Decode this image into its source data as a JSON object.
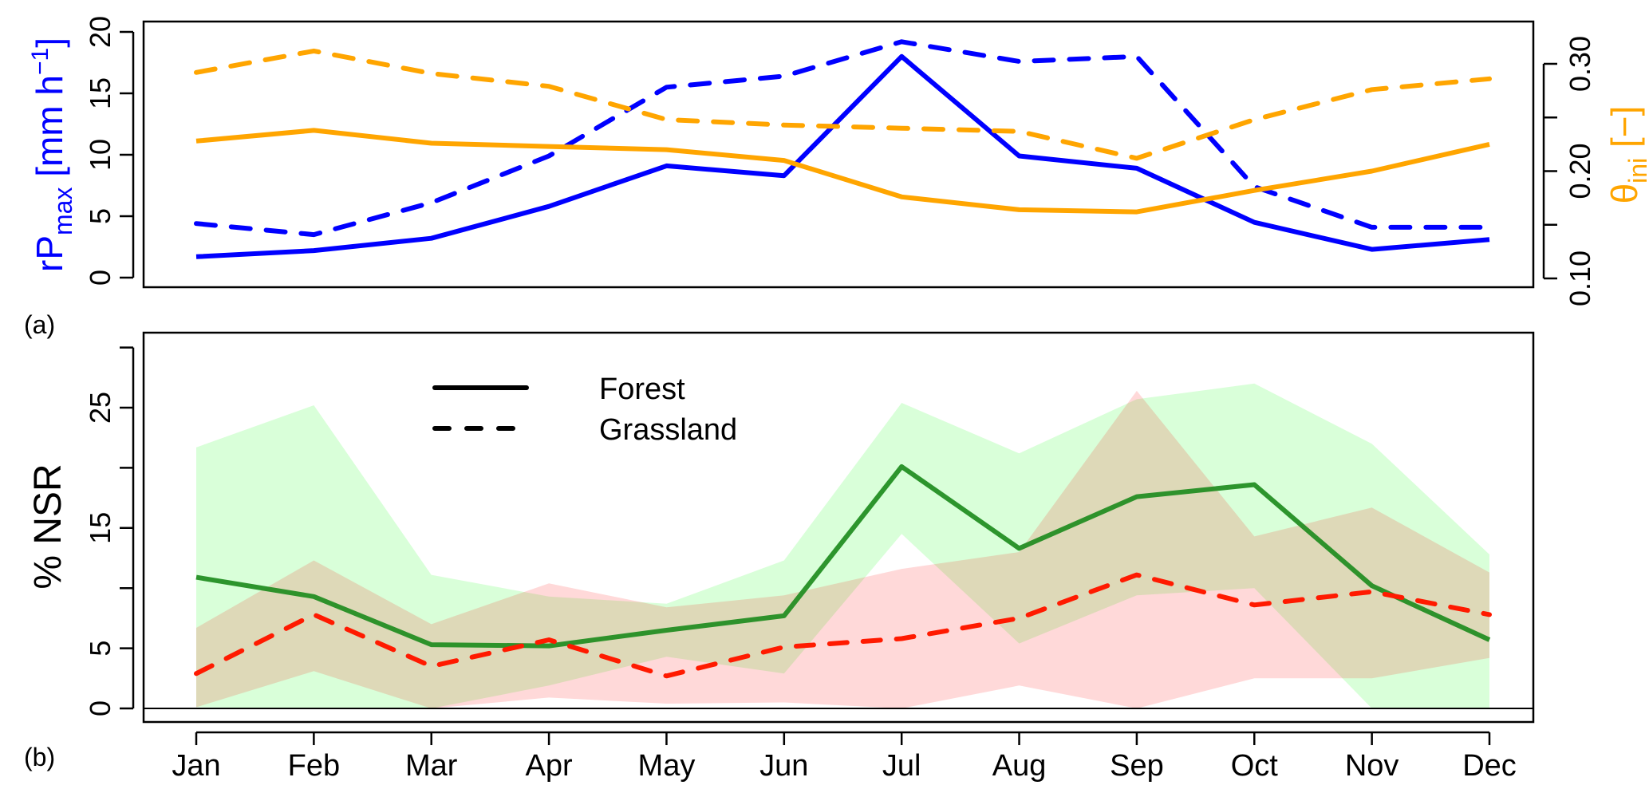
{
  "colors": {
    "rp_color": "#0000ff",
    "theta_color": "#ffa500",
    "forest_color": "#1e8c1e",
    "grass_color": "#ff1a00",
    "forest_band": "rgba(0,255,0,0.15)",
    "grass_band": "rgba(255,0,0,0.15)"
  },
  "chart_data": [
    {
      "panel": "(a)",
      "type": "line",
      "categories": [
        "Jan",
        "Feb",
        "Mar",
        "Apr",
        "May",
        "Jun",
        "Jul",
        "Aug",
        "Sep",
        "Oct",
        "Nov",
        "Dec"
      ],
      "ylabel_left": {
        "main": "rP",
        "sub": "max",
        "unit": " [mm h",
        "sup": "−1",
        "close": "]"
      },
      "ylabel_right": {
        "main": "θ",
        "sub": "ini",
        "unit": " [−]"
      },
      "ylim_left": [
        0,
        20
      ],
      "yticks_left": [
        0,
        5,
        10,
        15,
        20
      ],
      "yticklabels_left": [
        "0",
        "5",
        "10",
        "15",
        "20"
      ],
      "ylim_right": [
        0.1,
        0.3
      ],
      "yticks_right": [
        0.1,
        0.15,
        0.2,
        0.25,
        0.3
      ],
      "yticklabels_right": [
        "0.10",
        "",
        "0.20",
        "",
        "0.30"
      ],
      "series": [
        {
          "name": "rPmax Forest",
          "axis": "left",
          "style": "solid",
          "values": [
            1.7,
            2.2,
            3.2,
            5.8,
            9.1,
            8.3,
            18.0,
            9.9,
            8.9,
            4.5,
            2.3,
            3.1
          ]
        },
        {
          "name": "rPmax Grassland",
          "axis": "left",
          "style": "dashed",
          "values": [
            4.4,
            3.5,
            6.1,
            9.9,
            15.5,
            16.4,
            19.2,
            17.6,
            18.0,
            7.4,
            4.1,
            4.1
          ]
        },
        {
          "name": "θini Forest",
          "axis": "right",
          "style": "solid",
          "values": [
            0.228,
            0.238,
            0.226,
            0.223,
            0.22,
            0.21,
            0.176,
            0.164,
            0.162,
            0.182,
            0.2,
            0.225
          ]
        },
        {
          "name": "θini Grassland",
          "axis": "right",
          "style": "dashed",
          "values": [
            0.292,
            0.312,
            0.291,
            0.279,
            0.248,
            0.243,
            0.24,
            0.237,
            0.212,
            0.248,
            0.276,
            0.286
          ]
        }
      ]
    },
    {
      "panel": "(b)",
      "type": "line",
      "categories": [
        "Jan",
        "Feb",
        "Mar",
        "Apr",
        "May",
        "Jun",
        "Jul",
        "Aug",
        "Sep",
        "Oct",
        "Nov",
        "Dec"
      ],
      "ylabel": "% NSR",
      "ylim": [
        0,
        31.6
      ],
      "yticks": [
        0,
        5,
        10,
        15,
        20,
        25,
        30
      ],
      "yticklabels": [
        "0",
        "5",
        "",
        "15",
        "",
        "25",
        ""
      ],
      "legend": {
        "position": "top-center",
        "entries": [
          {
            "label": "Forest",
            "style": "solid"
          },
          {
            "label": "Grassland",
            "style": "dashed"
          }
        ]
      },
      "series": [
        {
          "name": "Forest",
          "style": "solid",
          "values": [
            10.9,
            9.3,
            5.3,
            5.2,
            6.5,
            7.7,
            20.1,
            13.3,
            17.6,
            18.6,
            10.2,
            5.7
          ],
          "band_upper": [
            21.7,
            25.2,
            11.1,
            9.3,
            8.7,
            12.3,
            25.4,
            21.2,
            25.7,
            27.0,
            22.0,
            12.8
          ],
          "band_lower": [
            0.1,
            0,
            0,
            1.9,
            4.3,
            2.9,
            14.5,
            5.4,
            9.4,
            10.0,
            0,
            0
          ]
        },
        {
          "name": "Grassland",
          "style": "dashed",
          "values": [
            2.9,
            7.8,
            3.5,
            5.7,
            2.7,
            5.1,
            5.8,
            7.5,
            11.1,
            8.6,
            9.7,
            7.8
          ],
          "band_upper": [
            6.7,
            12.3,
            7.0,
            10.4,
            8.4,
            9.4,
            11.6,
            13.0,
            26.4,
            14.3,
            16.7,
            11.3
          ],
          "band_lower": [
            0.1,
            3.1,
            0,
            0.9,
            0.4,
            0.5,
            0,
            1.9,
            0,
            2.5,
            2.5,
            4.2
          ]
        }
      ]
    }
  ]
}
